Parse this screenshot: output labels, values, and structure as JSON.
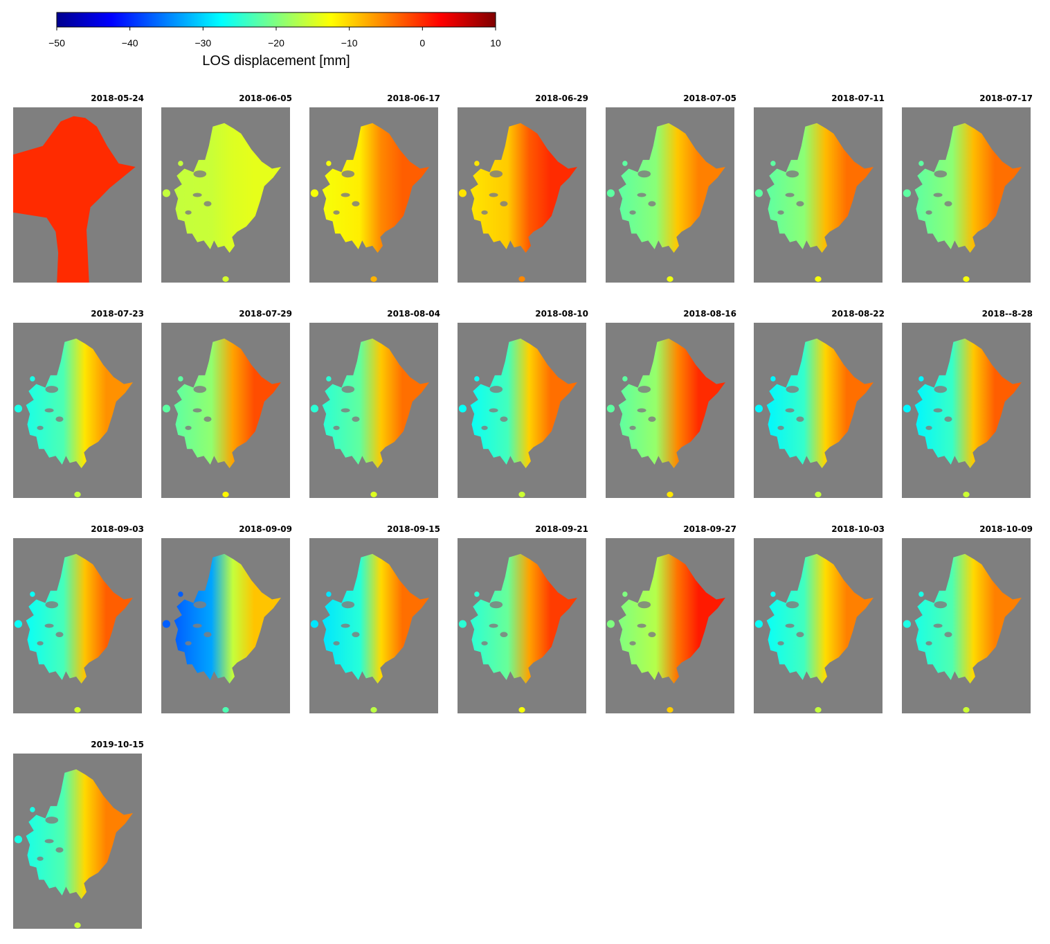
{
  "chart_data": {
    "type": "heatmap",
    "colorbar": {
      "label": "LOS displacement [mm]",
      "ticks": [
        "−50",
        "−40",
        "−30",
        "−20",
        "−10",
        "0",
        "10"
      ],
      "range": [
        -50,
        10
      ],
      "colormap": [
        "#00008f",
        "#0000ff",
        "#0080ff",
        "#00ffff",
        "#80ff80",
        "#ffff00",
        "#ff8000",
        "#ff0000",
        "#800000"
      ]
    },
    "background_color": "#7f7f7f",
    "panels": [
      {
        "date": "2018-05-24",
        "west": 0,
        "east": 0,
        "mode": "full"
      },
      {
        "date": "2018-06-05",
        "west": -16,
        "east": -14
      },
      {
        "date": "2018-06-17",
        "west": -13,
        "east": -3
      },
      {
        "date": "2018-06-29",
        "west": -11,
        "east": 0
      },
      {
        "date": "2018-07-05",
        "west": -22,
        "east": -5
      },
      {
        "date": "2018-07-11",
        "west": -22,
        "east": -4
      },
      {
        "date": "2018-07-17",
        "west": -22,
        "east": -4
      },
      {
        "date": "2018-07-23",
        "west": -26,
        "east": -6
      },
      {
        "date": "2018-07-29",
        "west": -22,
        "east": -2
      },
      {
        "date": "2018-08-04",
        "west": -25,
        "east": -4
      },
      {
        "date": "2018-08-10",
        "west": -27,
        "east": -4
      },
      {
        "date": "2018-08-16",
        "west": -22,
        "east": 0
      },
      {
        "date": "2018-08-22",
        "west": -28,
        "east": -4
      },
      {
        "date": "2018--8-28",
        "west": -28,
        "east": -3
      },
      {
        "date": "2018-09-03",
        "west": -27,
        "east": -3
      },
      {
        "date": "2018-09-09",
        "west": -37,
        "east": -9
      },
      {
        "date": "2018-09-15",
        "west": -29,
        "east": -4
      },
      {
        "date": "2018-09-21",
        "west": -25,
        "east": -1
      },
      {
        "date": "2018-09-27",
        "west": -20,
        "east": 1
      },
      {
        "date": "2018-10-03",
        "west": -27,
        "east": -5
      },
      {
        "date": "2018-10-09",
        "west": -26,
        "east": -5
      },
      {
        "date": "2019-10-15",
        "west": -26,
        "east": -5
      }
    ]
  }
}
